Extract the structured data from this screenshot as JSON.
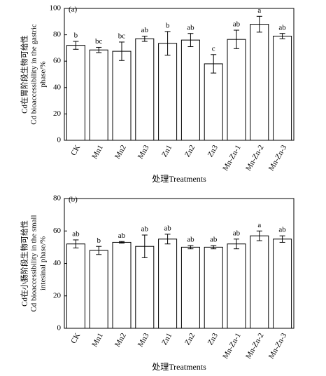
{
  "chart_data": [
    {
      "type": "bar",
      "panel_label": "(a)",
      "y_label": [
        "Cd在胃阶段生物可给性",
        "Cd bioaccessibility in the gastric",
        "phase/%"
      ],
      "x_label": "处理Treatments",
      "categories": [
        "CK",
        "Mn1",
        "Mn2",
        "Mn3",
        "Zn1",
        "Zn2",
        "Zn3",
        "Mn-Zn-1",
        "Mn-Zn-2",
        "Mn-Zn-3"
      ],
      "values": [
        72,
        68.5,
        67.5,
        77,
        73.5,
        76,
        58,
        76.5,
        88,
        79
      ],
      "errors": [
        3,
        2,
        7,
        2,
        9,
        5,
        7,
        7,
        6,
        2
      ],
      "letters": [
        "b",
        "bc",
        "bc",
        "ab",
        "b",
        "ab",
        "c",
        "ab",
        "a",
        "ab"
      ],
      "color": "#ffffff",
      "ylim": [
        0,
        100
      ],
      "yticks": [
        0,
        20,
        40,
        60,
        80,
        100
      ]
    },
    {
      "type": "bar",
      "panel_label": "(b)",
      "y_label": [
        "Cd在小肠阶段生物可给性",
        "Cd bioaccessibility in the small",
        "intesinal phase/%"
      ],
      "x_label": "处理Treatments",
      "categories": [
        "CK",
        "Mn1",
        "Mn2",
        "Mn3",
        "Zn1",
        "Zn2",
        "Zn3",
        "Mn-Zn-1",
        "Mn-Zn-2",
        "Mn-Zn-3"
      ],
      "values": [
        52,
        48,
        53,
        50.5,
        55,
        50,
        50,
        52,
        57,
        55
      ],
      "errors": [
        2.5,
        2.5,
        0.5,
        7,
        3,
        1,
        1,
        3,
        3,
        2
      ],
      "letters": [
        "ab",
        "b",
        "ab",
        "ab",
        "ab",
        "ab",
        "ab",
        "ab",
        "a",
        "ab"
      ],
      "color": "#ffffff",
      "ylim": [
        0,
        80
      ],
      "yticks": [
        0,
        20,
        40,
        60,
        80
      ]
    }
  ]
}
